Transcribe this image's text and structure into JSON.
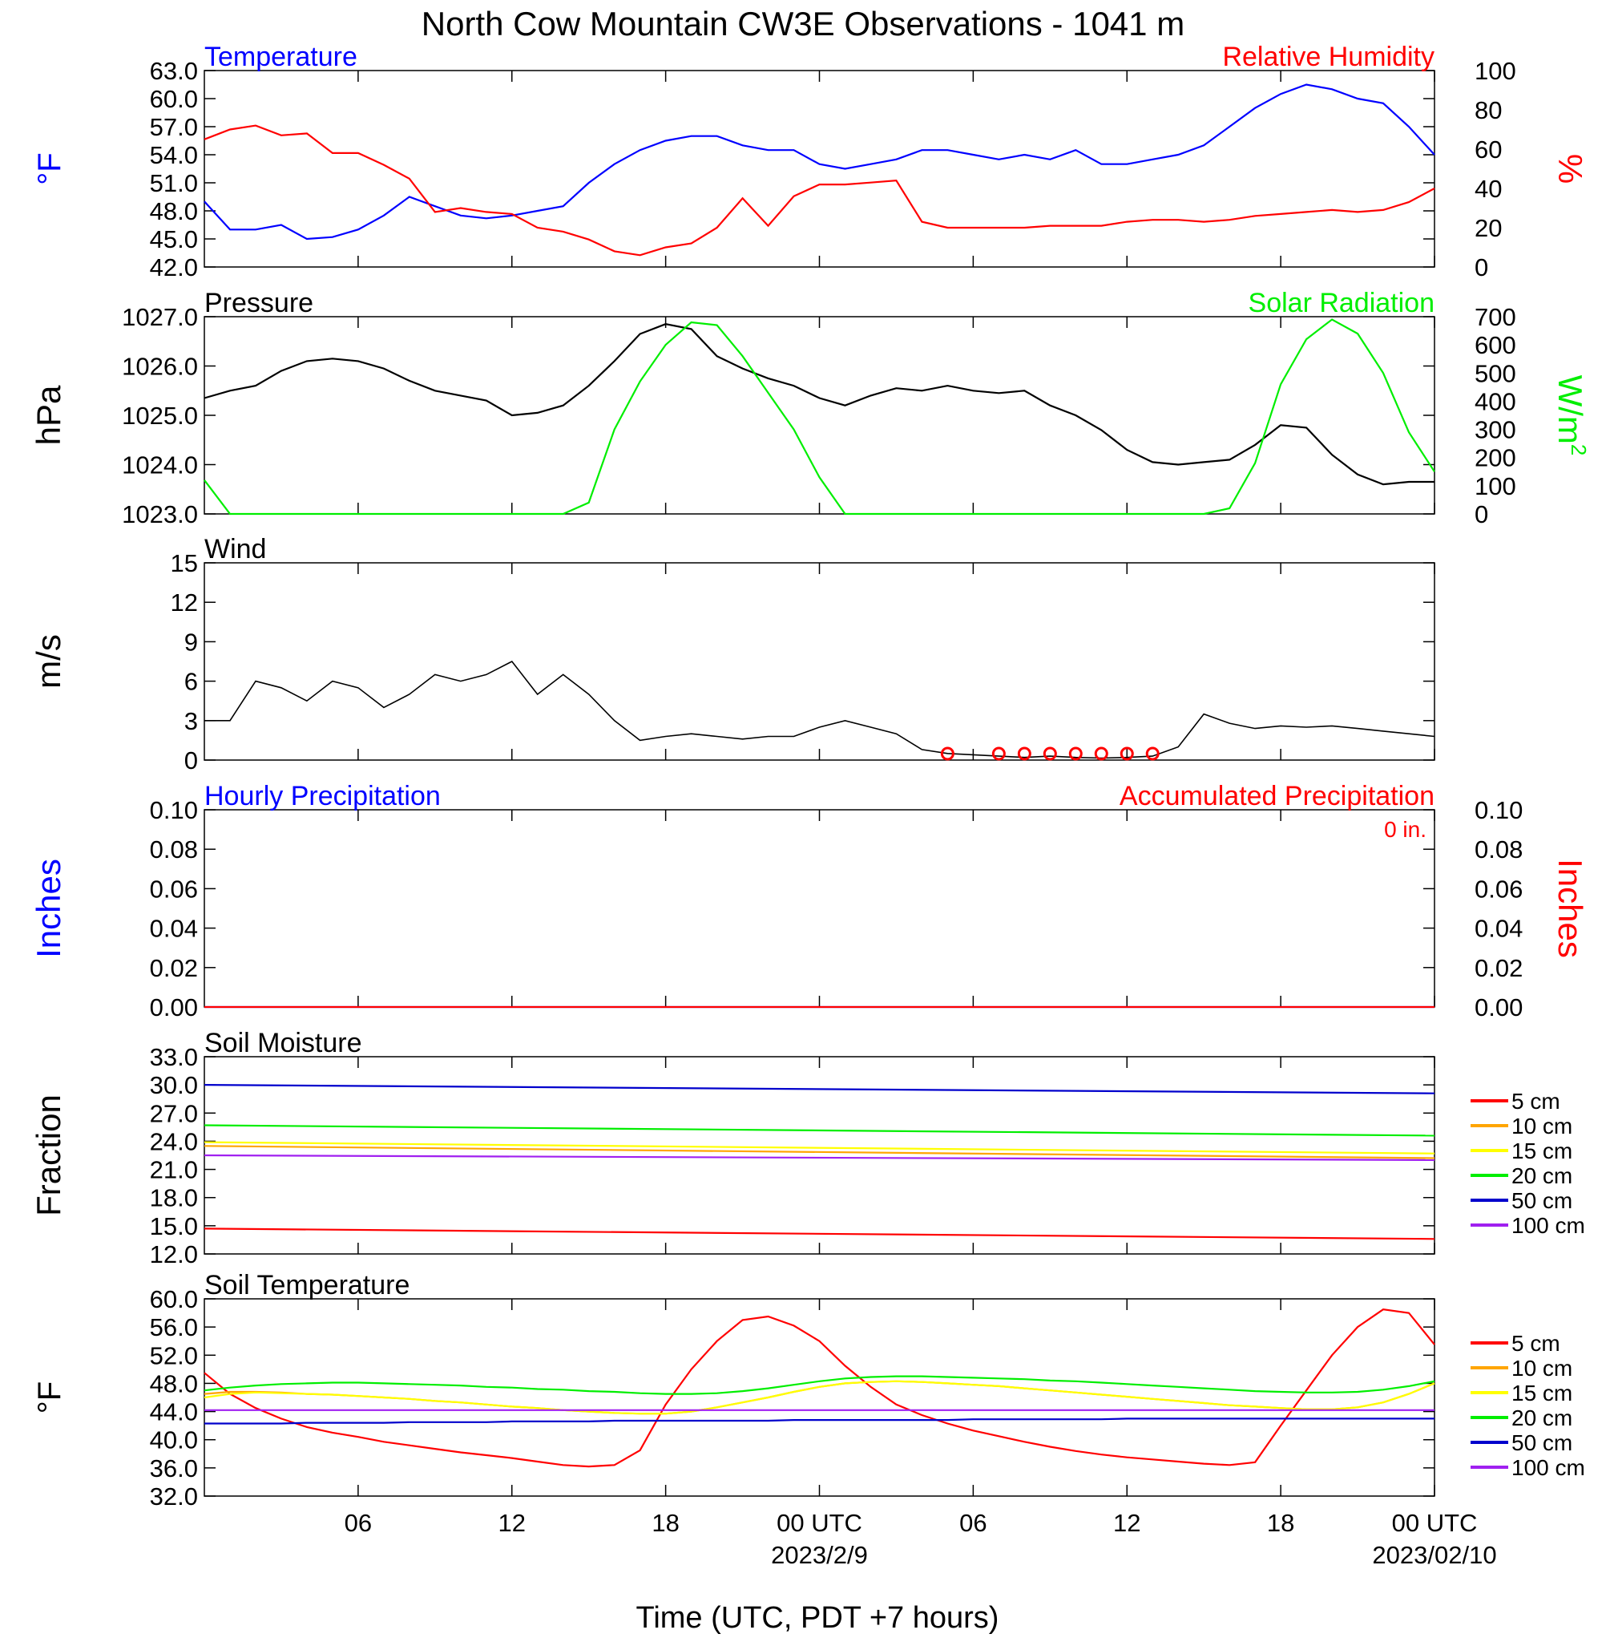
{
  "title": "North Cow Mountain CW3E Observations - 1041 m",
  "xaxis": {
    "label": "Time (UTC, PDT +7 hours)",
    "ticks": [
      "06",
      "12",
      "18",
      "00 UTC",
      "06",
      "12",
      "18",
      "00 UTC"
    ],
    "dates": [
      "2023/2/9",
      "2023/02/10"
    ]
  },
  "colors": {
    "blue": "#0000ff",
    "red": "#ff0000",
    "green": "#00ee00",
    "black": "#000000",
    "orange": "#ffa500",
    "yellow": "#ffff00",
    "purple": "#a020f0"
  },
  "chart_data": [
    {
      "type": "line",
      "title_left": "Temperature",
      "title_right": "Relative Humidity",
      "ylabel_left": "°F",
      "ylabel_right": "%",
      "ylim_left": [
        42,
        63
      ],
      "ylim_right": [
        0,
        100
      ],
      "yticks_left": [
        "63.0",
        "60.0",
        "57.0",
        "54.0",
        "51.0",
        "48.0",
        "45.0",
        "42.0"
      ],
      "yticks_right": [
        "100",
        "80",
        "60",
        "40",
        "20",
        "0"
      ],
      "x_hours": [
        1,
        2,
        3,
        4,
        5,
        6,
        7,
        8,
        9,
        10,
        11,
        12,
        13,
        14,
        15,
        16,
        17,
        18,
        19,
        20,
        21,
        22,
        23,
        24,
        25,
        26,
        27,
        28,
        29,
        30,
        31,
        32,
        33,
        34,
        35,
        36,
        37,
        38,
        39,
        40,
        41,
        42,
        43,
        44,
        45,
        46,
        47,
        48,
        49
      ],
      "series": [
        {
          "name": "Temperature",
          "axis": "left",
          "color": "#0000ff",
          "values": [
            49,
            46,
            46,
            46.5,
            45,
            45.2,
            46,
            47.5,
            49.5,
            48.5,
            47.5,
            47.2,
            47.5,
            48,
            48.5,
            51,
            53,
            54.5,
            55.5,
            56,
            56,
            55,
            54.5,
            54.5,
            53,
            52.5,
            53,
            53.5,
            54.5,
            54.5,
            54,
            53.5,
            54,
            53.5,
            54.5,
            53,
            53,
            53.5,
            54,
            55,
            57,
            59,
            60.5,
            61.5,
            61,
            60,
            59.5,
            57,
            54
          ]
        },
        {
          "name": "Relative Humidity",
          "axis": "right",
          "color": "#ff0000",
          "values": [
            65,
            70,
            72,
            67,
            68,
            58,
            58,
            52,
            45,
            28,
            30,
            28,
            27,
            20,
            18,
            14,
            8,
            6,
            10,
            12,
            20,
            35,
            21,
            36,
            42,
            42,
            43,
            44,
            23,
            20,
            20,
            20,
            20,
            21,
            21,
            21,
            23,
            24,
            24,
            23,
            24,
            26,
            27,
            28,
            29,
            28,
            29,
            33,
            40
          ]
        }
      ]
    },
    {
      "type": "line",
      "title_left": "Pressure",
      "title_right": "Solar Radiation",
      "ylabel_left": "hPa",
      "ylabel_right": "W/m",
      "ylabel_right_sup": "2",
      "ylim_left": [
        1023,
        1027
      ],
      "ylim_right": [
        0,
        700
      ],
      "yticks_left": [
        "1027.0",
        "1026.0",
        "1025.0",
        "1024.0",
        "1023.0"
      ],
      "yticks_right": [
        "700",
        "600",
        "500",
        "400",
        "300",
        "200",
        "100",
        "0"
      ],
      "x_hours": [
        1,
        2,
        3,
        4,
        5,
        6,
        7,
        8,
        9,
        10,
        11,
        12,
        13,
        14,
        15,
        16,
        17,
        18,
        19,
        20,
        21,
        22,
        23,
        24,
        25,
        26,
        27,
        28,
        29,
        30,
        31,
        32,
        33,
        34,
        35,
        36,
        37,
        38,
        39,
        40,
        41,
        42,
        43,
        44,
        45,
        46,
        47,
        48,
        49
      ],
      "series": [
        {
          "name": "Pressure",
          "axis": "left",
          "color": "#000000",
          "values": [
            1025.35,
            1025.5,
            1025.6,
            1025.9,
            1026.1,
            1026.15,
            1026.1,
            1025.95,
            1025.7,
            1025.5,
            1025.4,
            1025.3,
            1025.0,
            1025.05,
            1025.2,
            1025.6,
            1026.1,
            1026.65,
            1026.85,
            1026.75,
            1026.2,
            1025.95,
            1025.75,
            1025.6,
            1025.35,
            1025.2,
            1025.4,
            1025.55,
            1025.5,
            1025.6,
            1025.5,
            1025.45,
            1025.5,
            1025.2,
            1025.0,
            1024.7,
            1024.3,
            1024.05,
            1024.0,
            1024.05,
            1024.1,
            1024.4,
            1024.8,
            1024.75,
            1024.2,
            1023.8,
            1023.6,
            1023.65,
            1023.65
          ]
        },
        {
          "name": "Solar Radiation",
          "axis": "right",
          "color": "#00ee00",
          "values": [
            120,
            0,
            0,
            0,
            0,
            0,
            0,
            0,
            0,
            0,
            0,
            0,
            0,
            0,
            0,
            40,
            300,
            470,
            600,
            680,
            670,
            560,
            430,
            300,
            130,
            0,
            0,
            0,
            0,
            0,
            0,
            0,
            0,
            0,
            0,
            0,
            0,
            0,
            0,
            0,
            20,
            180,
            460,
            620,
            690,
            640,
            500,
            290,
            150
          ]
        }
      ]
    },
    {
      "type": "line",
      "title_left": "Wind",
      "ylabel_left": "m/s",
      "ylim_left": [
        0,
        15
      ],
      "yticks_left": [
        "15",
        "12",
        "9",
        "6",
        "3",
        "0"
      ],
      "x_hours": [
        1,
        2,
        3,
        4,
        5,
        6,
        7,
        8,
        9,
        10,
        11,
        12,
        13,
        14,
        15,
        16,
        17,
        18,
        19,
        20,
        21,
        22,
        23,
        24,
        25,
        26,
        27,
        28,
        29,
        30,
        31,
        32,
        33,
        34,
        35,
        36,
        37,
        38,
        39,
        40,
        41,
        42,
        43,
        44,
        45,
        46,
        47,
        48,
        49
      ],
      "series": [
        {
          "name": "Wind",
          "axis": "left",
          "color": "#000000",
          "values": [
            3,
            3,
            6,
            5.5,
            4.5,
            6,
            5.5,
            4,
            5,
            6.5,
            6,
            6.5,
            7.5,
            5,
            6.5,
            5,
            3,
            1.5,
            1.8,
            2,
            1.8,
            1.6,
            1.8,
            1.8,
            2.5,
            3,
            2.5,
            2,
            0.8,
            0.5,
            0.4,
            0.3,
            0.2,
            0.3,
            0.2,
            0.15,
            0.2,
            0.3,
            1,
            3.5,
            2.8,
            2.4,
            2.6,
            2.5,
            2.6,
            2.4,
            2.2,
            2,
            1.8
          ]
        }
      ],
      "calm_hours": [
        30,
        32,
        33,
        34,
        35,
        36,
        37,
        38
      ]
    },
    {
      "type": "line",
      "title_left": "Hourly Precipitation",
      "title_right": "Accumulated Precipitation",
      "annotation": "0 in.",
      "ylabel_left": "Inches",
      "ylabel_right": "Inches",
      "ylim_left": [
        0,
        0.1
      ],
      "ylim_right": [
        0,
        0.1
      ],
      "yticks_left": [
        "0.10",
        "0.08",
        "0.06",
        "0.04",
        "0.02",
        "0.00"
      ],
      "yticks_right": [
        "0.10",
        "0.08",
        "0.06",
        "0.04",
        "0.02",
        "0.00"
      ],
      "series": [
        {
          "name": "Hourly Precipitation",
          "axis": "left",
          "color": "#0000ff",
          "x": [
            1,
            49
          ],
          "values": [
            0,
            0
          ]
        },
        {
          "name": "Accumulated Precipitation",
          "axis": "right",
          "color": "#ff0000",
          "x": [
            1,
            49
          ],
          "values": [
            0,
            0
          ]
        }
      ]
    },
    {
      "type": "line",
      "title_left": "Soil Moisture",
      "ylabel_left": "Fraction",
      "ylim_left": [
        12,
        33
      ],
      "yticks_left": [
        "33.0",
        "30.0",
        "27.0",
        "24.0",
        "21.0",
        "18.0",
        "15.0",
        "12.0"
      ],
      "legend": [
        "5 cm",
        "10 cm",
        "15 cm",
        "20 cm",
        "50 cm",
        "100 cm"
      ],
      "x": [
        1,
        49
      ],
      "series": [
        {
          "name": "5 cm",
          "color": "#ff0000",
          "values": [
            14.7,
            13.6
          ]
        },
        {
          "name": "10 cm",
          "color": "#ffa500",
          "values": [
            23.5,
            22.2
          ]
        },
        {
          "name": "15 cm",
          "color": "#ffff00",
          "values": [
            23.9,
            22.7
          ]
        },
        {
          "name": "20 cm",
          "color": "#00ee00",
          "values": [
            25.7,
            24.6
          ]
        },
        {
          "name": "50 cm",
          "color": "#0000cc",
          "values": [
            30.0,
            29.1
          ]
        },
        {
          "name": "100 cm",
          "color": "#a020f0",
          "values": [
            22.5,
            22.0
          ]
        }
      ]
    },
    {
      "type": "line",
      "title_left": "Soil Temperature",
      "ylabel_left": "°F",
      "ylim_left": [
        32,
        60
      ],
      "yticks_left": [
        "60.0",
        "56.0",
        "52.0",
        "48.0",
        "44.0",
        "40.0",
        "36.0",
        "32.0"
      ],
      "legend": [
        "5 cm",
        "10 cm",
        "15 cm",
        "20 cm",
        "50 cm",
        "100 cm"
      ],
      "x_hours": [
        1,
        2,
        3,
        4,
        5,
        6,
        7,
        8,
        9,
        10,
        11,
        12,
        13,
        14,
        15,
        16,
        17,
        18,
        19,
        20,
        21,
        22,
        23,
        24,
        25,
        26,
        27,
        28,
        29,
        30,
        31,
        32,
        33,
        34,
        35,
        36,
        37,
        38,
        39,
        40,
        41,
        42,
        43,
        44,
        45,
        46,
        47,
        48,
        49
      ],
      "series": [
        {
          "name": "5 cm",
          "color": "#ff0000",
          "values": [
            49.5,
            46.5,
            44.5,
            43,
            41.8,
            41,
            40.4,
            39.7,
            39.2,
            38.7,
            38.2,
            37.8,
            37.4,
            36.9,
            36.4,
            36.2,
            36.4,
            38.5,
            45,
            50,
            54,
            57,
            57.5,
            56.2,
            54,
            50.5,
            47.5,
            45,
            43.5,
            42.3,
            41.3,
            40.5,
            39.7,
            39,
            38.4,
            37.9,
            37.5,
            37.2,
            36.9,
            36.6,
            36.4,
            36.8,
            42,
            47,
            52,
            56,
            58.5,
            58,
            53.5
          ]
        },
        {
          "name": "10 cm",
          "color": "#ffa500",
          "values": [
            46.5,
            46.8,
            46.8,
            46.7,
            46.5,
            46.4,
            46.2,
            46,
            45.8,
            45.5,
            45.3,
            45,
            44.7,
            44.5,
            44.2,
            44,
            43.8,
            43.7,
            43.7,
            44,
            44.6,
            45.3,
            46,
            46.8,
            47.5,
            48,
            48.2,
            48.3,
            48.2,
            48,
            47.8,
            47.6,
            47.3,
            47,
            46.7,
            46.4,
            46.1,
            45.8,
            45.5,
            45.2,
            44.9,
            44.7,
            44.5,
            44.3,
            44.3,
            44.6,
            45.3,
            46.5,
            48
          ]
        },
        {
          "name": "15 cm",
          "color": "#ffff00",
          "values": [
            46,
            46.5,
            46.7,
            46.6,
            46.5,
            46.4,
            46.2,
            46,
            45.8,
            45.5,
            45.3,
            45,
            44.7,
            44.5,
            44.2,
            44,
            43.8,
            43.7,
            43.7,
            44,
            44.6,
            45.3,
            46,
            46.8,
            47.5,
            48,
            48.2,
            48.3,
            48.2,
            48,
            47.8,
            47.6,
            47.3,
            47,
            46.7,
            46.4,
            46.1,
            45.8,
            45.5,
            45.2,
            44.9,
            44.7,
            44.5,
            44.3,
            44.3,
            44.6,
            45.3,
            46.5,
            48
          ]
        },
        {
          "name": "20 cm",
          "color": "#00ee00",
          "values": [
            47,
            47.4,
            47.7,
            47.9,
            48,
            48.1,
            48.1,
            48,
            47.9,
            47.8,
            47.7,
            47.5,
            47.4,
            47.2,
            47.1,
            46.9,
            46.8,
            46.6,
            46.5,
            46.5,
            46.6,
            46.9,
            47.3,
            47.8,
            48.3,
            48.7,
            48.9,
            49,
            49,
            48.9,
            48.8,
            48.7,
            48.6,
            48.4,
            48.3,
            48.1,
            47.9,
            47.7,
            47.5,
            47.3,
            47.1,
            46.9,
            46.8,
            46.7,
            46.7,
            46.8,
            47.1,
            47.6,
            48.3
          ]
        },
        {
          "name": "50 cm",
          "color": "#0000cc",
          "values": [
            42.3,
            42.3,
            42.3,
            42.3,
            42.4,
            42.4,
            42.4,
            42.4,
            42.5,
            42.5,
            42.5,
            42.5,
            42.6,
            42.6,
            42.6,
            42.6,
            42.7,
            42.7,
            42.7,
            42.7,
            42.7,
            42.7,
            42.7,
            42.8,
            42.8,
            42.8,
            42.8,
            42.8,
            42.8,
            42.8,
            42.9,
            42.9,
            42.9,
            42.9,
            42.9,
            42.9,
            43,
            43,
            43,
            43,
            43,
            43,
            43,
            43,
            43,
            43,
            43,
            43,
            43
          ]
        },
        {
          "name": "100 cm",
          "color": "#a020f0",
          "values": [
            44.2,
            44.2,
            44.2,
            44.2,
            44.2,
            44.2,
            44.2,
            44.2,
            44.2,
            44.2,
            44.2,
            44.2,
            44.2,
            44.2,
            44.2,
            44.2,
            44.2,
            44.2,
            44.2,
            44.2,
            44.2,
            44.2,
            44.2,
            44.2,
            44.2,
            44.2,
            44.2,
            44.2,
            44.2,
            44.2,
            44.2,
            44.2,
            44.2,
            44.2,
            44.2,
            44.2,
            44.2,
            44.2,
            44.2,
            44.2,
            44.2,
            44.2,
            44.2,
            44.2,
            44.2,
            44.2,
            44.2,
            44.2,
            44.2
          ]
        }
      ]
    }
  ]
}
